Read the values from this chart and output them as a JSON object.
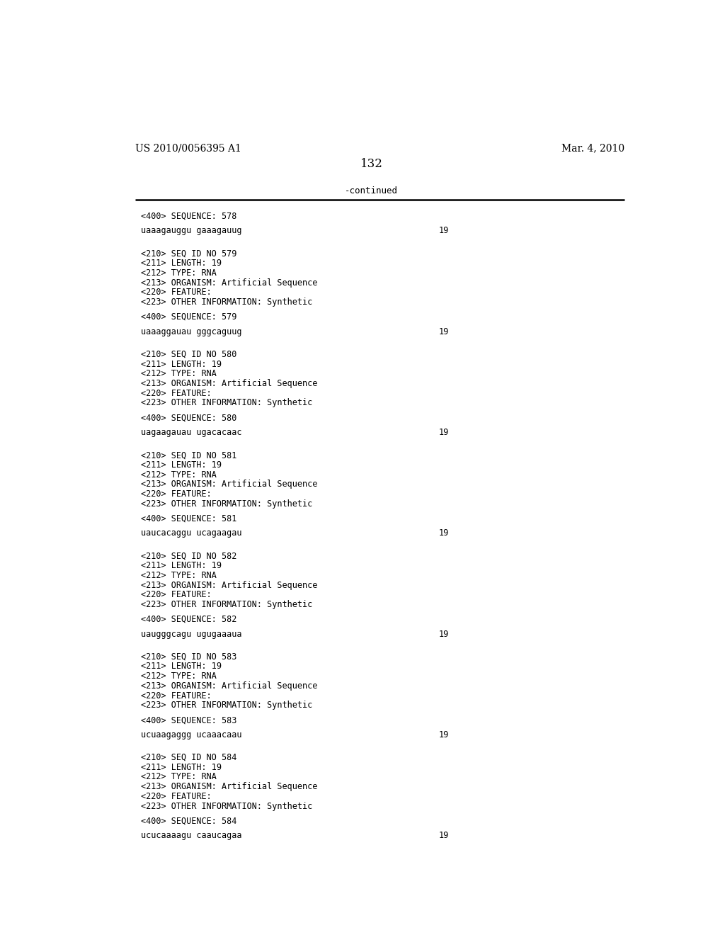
{
  "bg_color": "#ffffff",
  "header_left": "US 2010/0056395 A1",
  "header_right": "Mar. 4, 2010",
  "page_number": "132",
  "continued_text": "-continued",
  "monospace_font_size": 8.5,
  "header_font_size": 10,
  "page_num_font_size": 12,
  "entries": [
    {
      "seq400": "<400> SEQUENCE: 578",
      "sequence": "uaaagauggu gaaagauug",
      "seq_num": "19",
      "meta": []
    },
    {
      "seq400": "<400> SEQUENCE: 579",
      "sequence": "uaaaggauau gggcaguug",
      "seq_num": "19",
      "meta": [
        "<210> SEQ ID NO 579",
        "<211> LENGTH: 19",
        "<212> TYPE: RNA",
        "<213> ORGANISM: Artificial Sequence",
        "<220> FEATURE:",
        "<223> OTHER INFORMATION: Synthetic"
      ]
    },
    {
      "seq400": "<400> SEQUENCE: 580",
      "sequence": "uagaagauau ugacacaac",
      "seq_num": "19",
      "meta": [
        "<210> SEQ ID NO 580",
        "<211> LENGTH: 19",
        "<212> TYPE: RNA",
        "<213> ORGANISM: Artificial Sequence",
        "<220> FEATURE:",
        "<223> OTHER INFORMATION: Synthetic"
      ]
    },
    {
      "seq400": "<400> SEQUENCE: 581",
      "sequence": "uaucacaggu ucagaagau",
      "seq_num": "19",
      "meta": [
        "<210> SEQ ID NO 581",
        "<211> LENGTH: 19",
        "<212> TYPE: RNA",
        "<213> ORGANISM: Artificial Sequence",
        "<220> FEATURE:",
        "<223> OTHER INFORMATION: Synthetic"
      ]
    },
    {
      "seq400": "<400> SEQUENCE: 582",
      "sequence": "uaugggcagu ugugaaaua",
      "seq_num": "19",
      "meta": [
        "<210> SEQ ID NO 582",
        "<211> LENGTH: 19",
        "<212> TYPE: RNA",
        "<213> ORGANISM: Artificial Sequence",
        "<220> FEATURE:",
        "<223> OTHER INFORMATION: Synthetic"
      ]
    },
    {
      "seq400": "<400> SEQUENCE: 583",
      "sequence": "ucuaagaggg ucaaacaau",
      "seq_num": "19",
      "meta": [
        "<210> SEQ ID NO 583",
        "<211> LENGTH: 19",
        "<212> TYPE: RNA",
        "<213> ORGANISM: Artificial Sequence",
        "<220> FEATURE:",
        "<223> OTHER INFORMATION: Synthetic"
      ]
    },
    {
      "seq400": "<400> SEQUENCE: 584",
      "sequence": "ucucaaaagu caaucagaa",
      "seq_num": "19",
      "meta": [
        "<210> SEQ ID NO 584",
        "<211> LENGTH: 19",
        "<212> TYPE: RNA",
        "<213> ORGANISM: Artificial Sequence",
        "<220> FEATURE:",
        "<223> OTHER INFORMATION: Synthetic"
      ]
    }
  ]
}
